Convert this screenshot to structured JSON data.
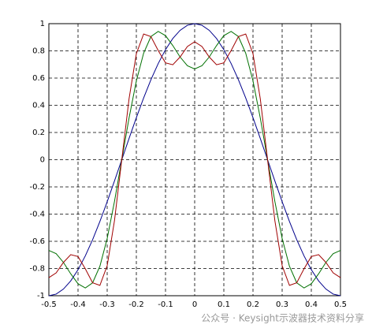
{
  "chart_data": {
    "type": "line",
    "x": [
      -0.5,
      -0.475,
      -0.45,
      -0.425,
      -0.4,
      -0.375,
      -0.35,
      -0.325,
      -0.3,
      -0.275,
      -0.25,
      -0.225,
      -0.2,
      -0.175,
      -0.15,
      -0.125,
      -0.1,
      -0.075,
      -0.05,
      -0.025,
      0,
      0.025,
      0.05,
      0.075,
      0.1,
      0.125,
      0.15,
      0.175,
      0.2,
      0.225,
      0.25,
      0.275,
      0.3,
      0.325,
      0.35,
      0.375,
      0.4,
      0.425,
      0.45,
      0.475,
      0.5
    ],
    "series": [
      {
        "color": "#00008b",
        "values": [
          -1,
          -0.988,
          -0.951,
          -0.891,
          -0.809,
          -0.707,
          -0.588,
          -0.454,
          -0.309,
          -0.156,
          0,
          0.156,
          0.309,
          0.454,
          0.588,
          0.707,
          0.809,
          0.891,
          0.951,
          0.988,
          1,
          0.988,
          0.951,
          0.891,
          0.809,
          0.707,
          0.588,
          0.454,
          0.309,
          0.156,
          0,
          -0.156,
          -0.309,
          -0.454,
          -0.588,
          -0.707,
          -0.809,
          -0.891,
          -0.951,
          -0.988,
          -1
        ]
      },
      {
        "color": "#007000",
        "values": [
          -0.667,
          -0.691,
          -0.755,
          -0.839,
          -0.912,
          -0.943,
          -0.905,
          -0.783,
          -0.579,
          -0.307,
          0,
          0.307,
          0.579,
          0.783,
          0.905,
          0.943,
          0.912,
          0.839,
          0.755,
          0.691,
          0.667,
          0.691,
          0.755,
          0.839,
          0.912,
          0.943,
          0.905,
          0.783,
          0.579,
          0.307,
          0,
          -0.307,
          -0.579,
          -0.783,
          -0.905,
          -0.943,
          -0.912,
          -0.839,
          -0.755,
          -0.691,
          -0.667
        ]
      },
      {
        "color": "#a00000",
        "values": [
          -0.867,
          -0.832,
          -0.755,
          -0.698,
          -0.712,
          -0.802,
          -0.905,
          -0.924,
          -0.779,
          -0.448,
          0,
          0.448,
          0.779,
          0.924,
          0.905,
          0.802,
          0.712,
          0.698,
          0.755,
          0.832,
          0.867,
          0.832,
          0.755,
          0.698,
          0.712,
          0.802,
          0.905,
          0.924,
          0.779,
          0.448,
          0,
          -0.448,
          -0.779,
          -0.924,
          -0.905,
          -0.802,
          -0.712,
          -0.698,
          -0.755,
          -0.832,
          -0.867
        ]
      }
    ],
    "xlim": [
      -0.5,
      0.5
    ],
    "ylim": [
      -1,
      1
    ],
    "xticks": [
      -0.5,
      -0.4,
      -0.3,
      -0.2,
      -0.1,
      0,
      0.1,
      0.2,
      0.3,
      0.4,
      0.5
    ],
    "yticks": [
      -1,
      -0.8,
      -0.6,
      -0.4,
      -0.2,
      0,
      0.2,
      0.4,
      0.6,
      0.8,
      1
    ],
    "grid": true,
    "annotation": "公众号 · Keysight示波器技术资料分享"
  }
}
